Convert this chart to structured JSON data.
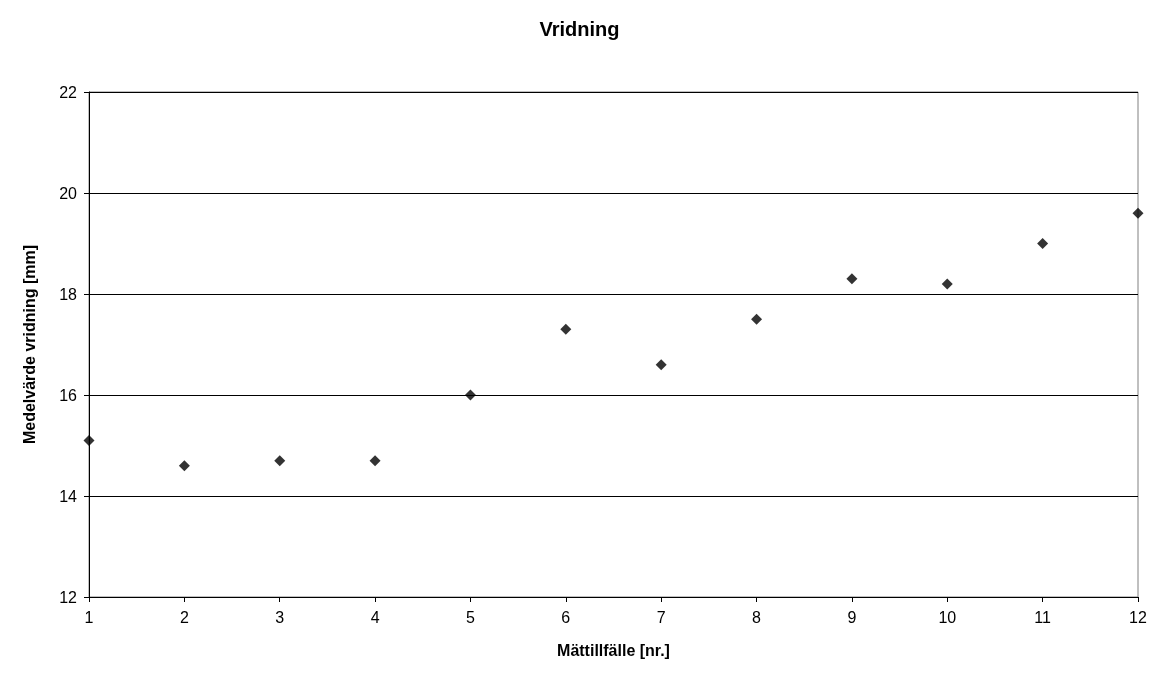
{
  "chart_data": {
    "type": "scatter",
    "title": "Vridning",
    "xlabel": "Mättillfälle [nr.]",
    "ylabel": "Medelvärde vridning [mm]",
    "x": [
      1,
      2,
      3,
      4,
      5,
      6,
      7,
      8,
      9,
      10,
      11,
      12
    ],
    "series": [
      {
        "color": "#000000",
        "values": [
          15.1,
          14.6,
          14.7,
          14.7,
          16.0,
          17.3,
          16.6,
          17.5,
          18.3,
          18.2,
          19.0,
          19.6
        ]
      }
    ],
    "xlim": [
      1,
      12
    ],
    "xticks": [
      1,
      2,
      3,
      4,
      5,
      6,
      7,
      8,
      9,
      10,
      11,
      12
    ],
    "ylim": [
      12,
      22
    ],
    "yticks": [
      12,
      14,
      16,
      18,
      20,
      22
    ],
    "grid": "y",
    "marker": "diamond"
  }
}
